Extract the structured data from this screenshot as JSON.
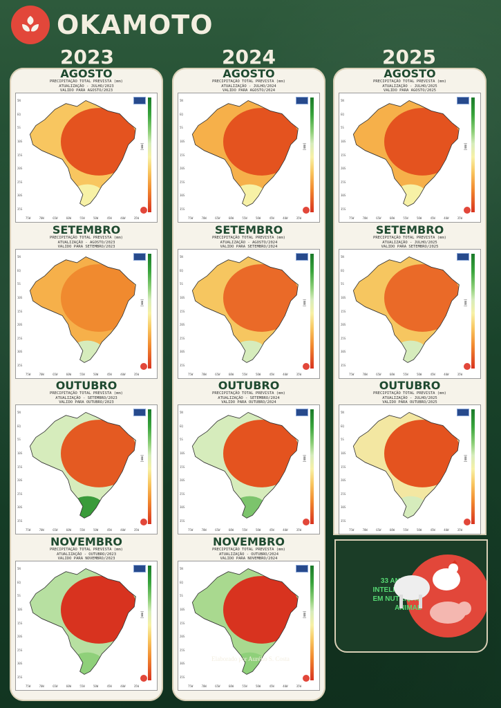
{
  "brand": {
    "name": "OKAMOTO"
  },
  "years": [
    "2023",
    "2024",
    "2025"
  ],
  "colors": {
    "accent": "#e2473a",
    "dark_green": "#1f4a30",
    "panel_bg": "#f6f3ea"
  },
  "columns": [
    {
      "year": "2023",
      "panels": [
        {
          "month": "AGOSTO",
          "line1": "PRECIPITAÇÃO TOTAL PREVISTA (mm)",
          "line2": "ATUALIZAÇÃO - JULHO/2023",
          "line3": "VALIDO PARA AGOSTO/2023"
        },
        {
          "month": "SETEMBRO",
          "line1": "PRECIPITAÇÃO TOTAL PREVISTA (mm)",
          "line2": "ATUALIZAÇÃO - AGOSTO/2023",
          "line3": "VALIDO PARA SETEMBRO/2023"
        },
        {
          "month": "OUTUBRO",
          "line1": "PRECIPITAÇÃO TOTAL PREVISTA (mm)",
          "line2": "ATUALIZAÇÃO - SETEMBRO/2023",
          "line3": "VALIDO PARA OUTUBRO/2023"
        },
        {
          "month": "NOVEMBRO",
          "line1": "PRECIPITAÇÃO TOTAL PREVISTA (mm)",
          "line2": "ATUALIZAÇÃO - OUTUBRO/2023",
          "line3": "VALIDO PARA NOVEMBRO/2023"
        }
      ]
    },
    {
      "year": "2024",
      "panels": [
        {
          "month": "AGOSTO",
          "line1": "PRECIPITAÇÃO TOTAL PREVISTA (mm)",
          "line2": "ATUALIZAÇÃO - JULHO/2024",
          "line3": "VALIDO PARA AGOSTO/2024"
        },
        {
          "month": "SETEMBRO",
          "line1": "PRECIPITAÇÃO TOTAL PREVISTA (mm)",
          "line2": "ATUALIZAÇÃO - AGOSTO/2024",
          "line3": "VALIDO PARA SETEMBRO/2024"
        },
        {
          "month": "OUTUBRO",
          "line1": "PRECIPITAÇÃO TOTAL PREVISTA (mm)",
          "line2": "ATUALIZAÇÃO - SETEMBRO/2024",
          "line3": "VALIDO PARA OUTUBRO/2024"
        },
        {
          "month": "NOVEMBRO",
          "line1": "PRECIPITAÇÃO TOTAL PREVISTA (mm)",
          "line2": "ATUALIZAÇÃO - OUTUBRO/2024",
          "line3": "VALIDO PARA NOVEMBRO/2024"
        }
      ]
    },
    {
      "year": "2025",
      "panels": [
        {
          "month": "AGOSTO",
          "line1": "PRECIPITAÇÃO TOTAL PREVISTA (mm)",
          "line2": "ATUALIZAÇÃO - JULHO/2025",
          "line3": "VALIDO PARA AGOSTO/2025"
        },
        {
          "month": "SETEMBRO",
          "line1": "PRECIPITAÇÃO TOTAL PREVISTA (mm)",
          "line2": "ATUALIZAÇÃO - JULHO/2025",
          "line3": "VALIDO PARA SETEMBRO/2025"
        },
        {
          "month": "OUTUBRO",
          "line1": "PRECIPITAÇÃO TOTAL PREVISTA (mm)",
          "line2": "ATUALIZAÇÃO - JULHO/2025",
          "line3": "VALIDO PARA OUTUBRO/2025"
        }
      ]
    }
  ],
  "map": {
    "legend_unit": "(mm)",
    "lat_ticks": [
      "5N",
      "EQ",
      "5S",
      "10S",
      "15S",
      "20S",
      "25S",
      "30S",
      "35S"
    ],
    "lon_ticks": [
      "75W",
      "70W",
      "65W",
      "60W",
      "55W",
      "50W",
      "45W",
      "40W",
      "35W"
    ]
  },
  "promo": {
    "text_lines": [
      "33 ANOS DE",
      "INTELIGÊNCIA",
      "EM NUTRIÇÃO",
      "ANIMAL"
    ]
  },
  "credit": "Elaborado por Aurélio S. Costa"
}
